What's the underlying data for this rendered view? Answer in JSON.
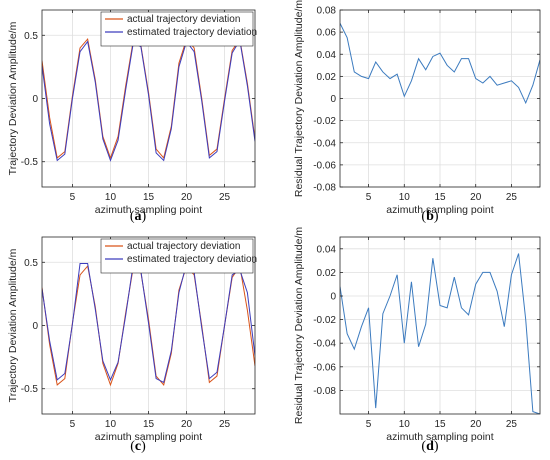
{
  "chart_data": [
    {
      "id": "a",
      "panel_label": "a",
      "type": "line",
      "xlabel": "azimuth sampling point",
      "ylabel": "Trajectory Deviation Amplitude/m",
      "xlim": [
        1,
        29
      ],
      "ylim": [
        -0.7,
        0.7
      ],
      "xticks": [
        5,
        10,
        15,
        20,
        25
      ],
      "yticks": [
        -0.5,
        0,
        0.5
      ],
      "ytick_labels": [
        "-0.5",
        "0",
        "0.5"
      ],
      "grid": true,
      "legend": "top-right",
      "x": [
        1,
        2,
        3,
        4,
        5,
        6,
        7,
        8,
        9,
        10,
        11,
        12,
        13,
        14,
        15,
        16,
        17,
        18,
        19,
        20,
        21,
        22,
        23,
        24,
        25,
        26,
        27,
        28,
        29
      ],
      "series": [
        {
          "name": "actual trajectory deviation",
          "color": "#d95319",
          "values": [
            0.3,
            -0.15,
            -0.47,
            -0.42,
            0.02,
            0.4,
            0.47,
            0.15,
            -0.3,
            -0.47,
            -0.3,
            0.1,
            0.46,
            0.42,
            0.05,
            -0.4,
            -0.47,
            -0.22,
            0.28,
            0.47,
            0.4,
            0.0,
            -0.45,
            -0.4,
            0.0,
            0.38,
            0.47,
            0.12,
            -0.32
          ]
        },
        {
          "name": "estimated trajectory deviation",
          "color": "#3d3dbd",
          "values": [
            0.26,
            -0.2,
            -0.49,
            -0.44,
            0.0,
            0.37,
            0.45,
            0.13,
            -0.32,
            -0.49,
            -0.33,
            0.07,
            0.44,
            0.41,
            0.03,
            -0.43,
            -0.49,
            -0.24,
            0.25,
            0.45,
            0.37,
            -0.02,
            -0.47,
            -0.42,
            -0.02,
            0.36,
            0.46,
            0.1,
            -0.34
          ]
        }
      ]
    },
    {
      "id": "b",
      "panel_label": "b",
      "type": "line",
      "xlabel": "azimuth sampling point",
      "ylabel": "Residual Trajectory Deviation Amplitude/m",
      "xlim": [
        1,
        29
      ],
      "ylim": [
        -0.08,
        0.08
      ],
      "xticks": [
        5,
        10,
        15,
        20,
        25
      ],
      "yticks": [
        -0.08,
        -0.06,
        -0.04,
        -0.02,
        0,
        0.02,
        0.04,
        0.06,
        0.08
      ],
      "ytick_labels": [
        "-0.08",
        "-0.06",
        "-0.04",
        "-0.02",
        "0",
        "0.02",
        "0.04",
        "0.06",
        "0.08"
      ],
      "grid": true,
      "x": [
        1,
        2,
        3,
        4,
        5,
        6,
        7,
        8,
        9,
        10,
        11,
        12,
        13,
        14,
        15,
        16,
        17,
        18,
        19,
        20,
        21,
        22,
        23,
        24,
        25,
        26,
        27,
        28,
        29
      ],
      "series": [
        {
          "color": "#3c7bbf",
          "values": [
            0.068,
            0.055,
            0.024,
            0.02,
            0.018,
            0.033,
            0.024,
            0.018,
            0.022,
            0.002,
            0.016,
            0.036,
            0.026,
            0.038,
            0.041,
            0.03,
            0.024,
            0.036,
            0.036,
            0.018,
            0.014,
            0.02,
            0.012,
            0.014,
            0.016,
            0.01,
            -0.004,
            0.012,
            0.035
          ]
        }
      ]
    },
    {
      "id": "c",
      "panel_label": "c",
      "type": "line",
      "xlabel": "azimuth sampling point",
      "ylabel": "Trajectory Deviation Amplitude/m",
      "xlim": [
        1,
        29
      ],
      "ylim": [
        -0.7,
        0.7
      ],
      "xticks": [
        5,
        10,
        15,
        20,
        25
      ],
      "yticks": [
        -0.5,
        0,
        0.5
      ],
      "ytick_labels": [
        "-0.5",
        "0",
        "0.5"
      ],
      "grid": true,
      "legend": "top-right",
      "x": [
        1,
        2,
        3,
        4,
        5,
        6,
        7,
        8,
        9,
        10,
        11,
        12,
        13,
        14,
        15,
        16,
        17,
        18,
        19,
        20,
        21,
        22,
        23,
        24,
        25,
        26,
        27,
        28,
        29
      ],
      "series": [
        {
          "name": "actual trajectory deviation",
          "color": "#d95319",
          "values": [
            0.3,
            -0.15,
            -0.47,
            -0.42,
            0.02,
            0.4,
            0.47,
            0.15,
            -0.3,
            -0.47,
            -0.3,
            0.1,
            0.46,
            0.42,
            0.05,
            -0.4,
            -0.47,
            -0.22,
            0.28,
            0.47,
            0.4,
            0.0,
            -0.45,
            -0.4,
            0.0,
            0.38,
            0.47,
            0.12,
            -0.32
          ]
        },
        {
          "name": "estimated trajectory deviation",
          "color": "#3d3dbd",
          "values": [
            0.29,
            -0.12,
            -0.43,
            -0.38,
            0.01,
            0.49,
            0.49,
            0.13,
            -0.28,
            -0.43,
            -0.29,
            0.08,
            0.49,
            0.43,
            0.02,
            -0.42,
            -0.45,
            -0.2,
            0.26,
            0.49,
            0.42,
            -0.02,
            -0.42,
            -0.37,
            0.0,
            0.4,
            0.44,
            0.26,
            -0.24
          ]
        }
      ]
    },
    {
      "id": "d",
      "panel_label": "d",
      "type": "line",
      "xlabel": "azimuth sampling point",
      "ylabel": "Residual Trajectory Deviation Amplitude/m",
      "xlim": [
        1,
        29
      ],
      "ylim": [
        -0.1,
        0.05
      ],
      "xticks": [
        5,
        10,
        15,
        20,
        25
      ],
      "yticks": [
        -0.08,
        -0.06,
        -0.04,
        -0.02,
        0,
        0.02,
        0.04
      ],
      "ytick_labels": [
        "-0.08",
        "-0.06",
        "-0.04",
        "-0.02",
        "0",
        "0.02",
        "0.04"
      ],
      "grid": true,
      "x": [
        1,
        2,
        3,
        4,
        5,
        6,
        7,
        8,
        9,
        10,
        11,
        12,
        13,
        14,
        15,
        16,
        17,
        18,
        19,
        20,
        21,
        22,
        23,
        24,
        25,
        26,
        27,
        28,
        29
      ],
      "series": [
        {
          "color": "#3c7bbf",
          "values": [
            0.008,
            -0.032,
            -0.045,
            -0.026,
            -0.01,
            -0.095,
            -0.015,
            0.0,
            0.018,
            -0.04,
            0.012,
            -0.043,
            -0.024,
            0.032,
            -0.008,
            -0.01,
            0.016,
            -0.01,
            -0.016,
            0.01,
            0.02,
            0.02,
            0.004,
            -0.026,
            0.018,
            0.036,
            -0.02,
            -0.098,
            -0.1
          ]
        }
      ]
    }
  ]
}
